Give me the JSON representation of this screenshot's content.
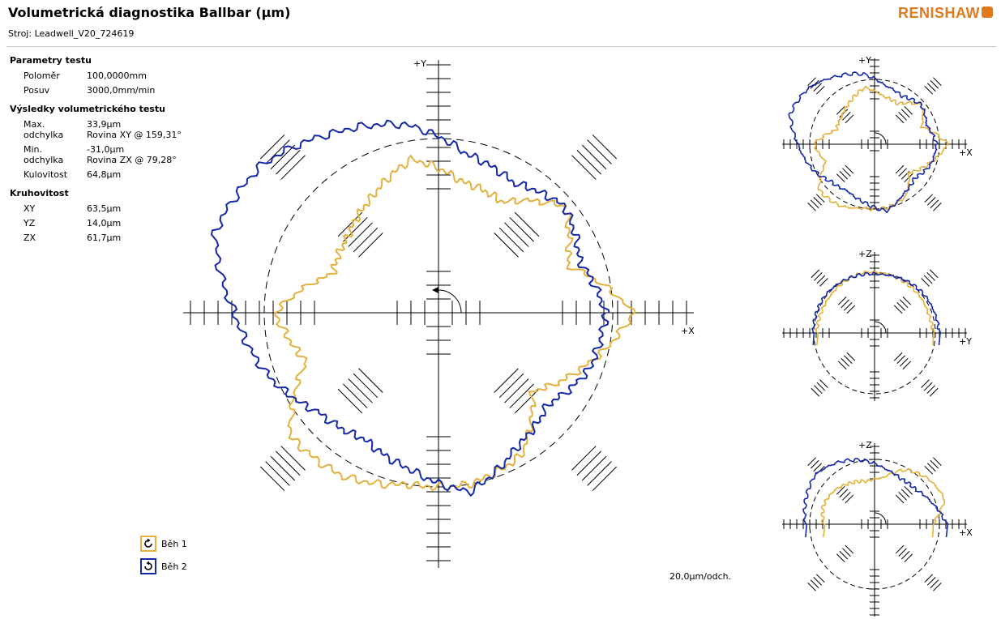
{
  "header": {
    "title": "Volumetrická diagnostika Ballbar (µm)",
    "machine": "Stroj: Leadwell_V20_724619",
    "logo_text": "RENISHAW",
    "logo_color": "#e07a1f"
  },
  "params": {
    "heading": "Parametry testu",
    "radius_label": "Poloměr",
    "radius_value": "100,0000mm",
    "feed_label": "Posuv",
    "feed_value": "3000,0mm/min"
  },
  "results": {
    "heading": "Výsledky volumetrického testu",
    "max_label": "Max. odchylka",
    "max_value": "33,9µm",
    "max_plane": "Rovina XY @ 159,31°",
    "min_label": "Min. odchylka",
    "min_value": "-31,0µm",
    "min_plane": "Rovina ZX @ 79,28°",
    "sphericity_label": "Kulovitost",
    "sphericity_value": "64,8µm"
  },
  "circularity": {
    "heading": "Kruhovitost",
    "rows": [
      {
        "label": "XY",
        "value": "63,5µm"
      },
      {
        "label": "YZ",
        "value": "14,0µm"
      },
      {
        "label": "ZX",
        "value": "61,7µm"
      }
    ]
  },
  "legend": {
    "run1_label": "Běh 1",
    "run2_label": "Běh 2",
    "run1_color": "#e3b13c",
    "run2_color": "#1428a8"
  },
  "scale_note": "20,0µm/odch.",
  "chart_data": [
    {
      "type": "line",
      "plane": "XY",
      "scale_um_per_division": 20,
      "x_axis_label": "+X",
      "y_axis_label": "+Y",
      "reference_circle": "dashed",
      "deviation_unit": "µm",
      "deviation_sample_angles_deg": [
        0,
        20,
        40,
        60,
        80,
        100,
        120,
        140,
        160,
        180,
        200,
        220,
        240,
        260,
        280,
        300,
        320,
        340
      ],
      "series": [
        {
          "name": "Běh 1",
          "color": "#e3b13c",
          "deviation_um": [
            11,
            -20,
            -5,
            -25,
            -22,
            -10,
            -22,
            -30,
            -33,
            -6,
            -18,
            10,
            8,
            0,
            0,
            -5,
            -28,
            -10
          ]
        },
        {
          "name": "Běh 2",
          "color": "#1428a8",
          "deviation_um": [
            -4,
            -13,
            -5,
            -13,
            -7,
            9,
            18,
            30,
            34,
            16,
            4,
            -10,
            -15,
            -8,
            4,
            -10,
            -17,
            -7
          ]
        }
      ]
    },
    {
      "type": "line",
      "plane": "YZ",
      "x_axis_label": "+Y",
      "y_axis_label": "+Z",
      "reference_circle": "dashed",
      "deviation_unit": "µm",
      "deviation_sample_angles_deg": [
        0,
        20,
        40,
        60,
        80,
        100,
        120,
        140,
        160,
        180
      ],
      "series": [
        {
          "name": "Běh 1",
          "color": "#e3b13c",
          "deviation_um": [
            -4,
            -6,
            -4,
            -3,
            -1,
            1,
            -2,
            -5,
            -6,
            -5
          ]
        },
        {
          "name": "Běh 2",
          "color": "#1428a8",
          "deviation_um": [
            6,
            4,
            3,
            0,
            -3,
            -2,
            0,
            2,
            1,
            1
          ]
        }
      ]
    },
    {
      "type": "line",
      "plane": "ZX",
      "x_axis_label": "+X",
      "y_axis_label": "+Z",
      "reference_circle": "dashed",
      "deviation_unit": "µm",
      "deviation_sample_angles_deg": [
        0,
        20,
        40,
        60,
        80,
        100,
        120,
        140,
        160,
        180
      ],
      "series": [
        {
          "name": "Běh 1",
          "color": "#e3b13c",
          "deviation_um": [
            -10,
            14,
            8,
            -3,
            -26,
            -31,
            -25,
            -18,
            -15,
            -20
          ]
        },
        {
          "name": "Běh 2",
          "color": "#1428a8",
          "deviation_um": [
            10,
            -5,
            -16,
            -18,
            -12,
            0,
            10,
            18,
            12,
            6
          ]
        }
      ]
    }
  ]
}
